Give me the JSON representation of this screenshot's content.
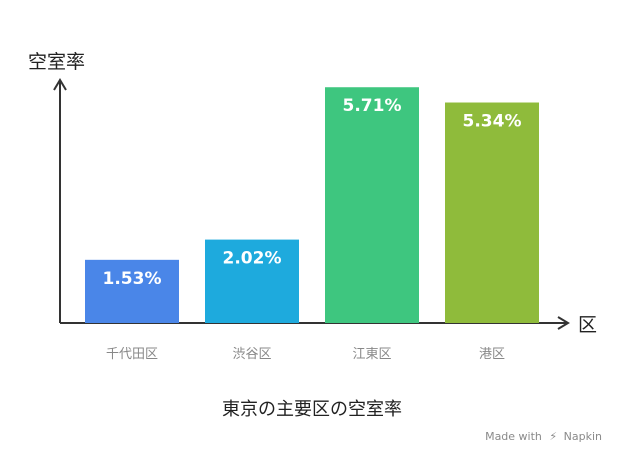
{
  "chart_data": {
    "type": "bar",
    "title": "東京の主要区の空室率",
    "ylabel": "空室率",
    "xlabel": "区",
    "categories": [
      "千代田区",
      "渋谷区",
      "江東区",
      "港区"
    ],
    "values": [
      1.53,
      2.02,
      5.71,
      5.34
    ],
    "value_labels": [
      "1.53%",
      "2.02%",
      "5.71%",
      "5.34%"
    ],
    "colors": [
      "#4a86e8",
      "#1eaadd",
      "#3ec67f",
      "#8fbb3b"
    ],
    "ylim": [
      0,
      6.2
    ],
    "grid": false
  },
  "watermark": {
    "prefix": "Made with",
    "brand": "Napkin"
  }
}
